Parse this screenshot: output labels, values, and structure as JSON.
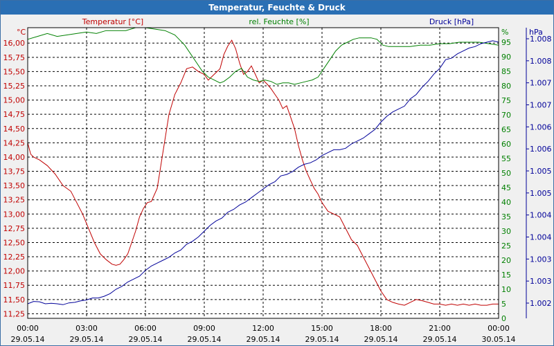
{
  "window": {
    "title": "Temperatur, Feuchte & Druck"
  },
  "colors": {
    "temperature": "#c00000",
    "humidity": "#008000",
    "pressure": "#000099",
    "grid": "#000000",
    "titlebar": "#2a6fb4"
  },
  "chart_data": {
    "type": "line",
    "title": "Temperatur, Feuchte & Druck",
    "grid": true,
    "x_ticks": [
      {
        "time": "00:00",
        "date": "29.05.14"
      },
      {
        "time": "03:00",
        "date": "29.05.14"
      },
      {
        "time": "06:00",
        "date": "29.05.14"
      },
      {
        "time": "09:00",
        "date": "29.05.14"
      },
      {
        "time": "12:00",
        "date": "29.05.14"
      },
      {
        "time": "15:00",
        "date": "29.05.14"
      },
      {
        "time": "18:00",
        "date": "29.05.14"
      },
      {
        "time": "21:00",
        "date": "29.05.14"
      },
      {
        "time": "00:00",
        "date": "30.05.14"
      }
    ],
    "axes": {
      "temperature": {
        "label": "Temperatur [°C]",
        "unit": "°C",
        "ylim": [
          11.17,
          16.27
        ],
        "ticks": [
          "11,25",
          "11,50",
          "11,75",
          "12,00",
          "12,25",
          "12,50",
          "12,75",
          "13,00",
          "13,25",
          "13,50",
          "13,75",
          "14,00",
          "14,25",
          "14,50",
          "14,75",
          "15,00",
          "15,25",
          "15,50",
          "15,75",
          "16,00"
        ]
      },
      "humidity": {
        "label": "rel. Feuchte [%]",
        "unit": "%",
        "ylim": [
          0,
          100
        ],
        "ticks": [
          "0",
          "5",
          "10",
          "15",
          "20",
          "25",
          "30",
          "35",
          "40",
          "45",
          "50",
          "55",
          "60",
          "65",
          "70",
          "75",
          "80",
          "85",
          "90",
          "95"
        ]
      },
      "pressure": {
        "label": "Druck [hPa]",
        "unit": "hPa",
        "ticks": [
          "1.002",
          "1.003",
          "1.003",
          "1.004",
          "1.004",
          "1.005",
          "1.005",
          "1.006",
          "1.006",
          "1.007",
          "1.007",
          "1.008",
          "1.008"
        ]
      }
    },
    "series": [
      {
        "name": "Temperatur [°C]",
        "x": [
          0.0,
          0.15,
          0.3,
          0.6,
          1.0,
          1.4,
          1.8,
          2.2,
          2.5,
          2.8,
          3.1,
          3.4,
          3.7,
          4.0,
          4.3,
          4.5,
          4.7,
          4.9,
          5.1,
          5.3,
          5.5,
          5.7,
          5.9,
          6.1,
          6.3,
          6.6,
          6.9,
          7.2,
          7.5,
          7.8,
          8.1,
          8.4,
          8.7,
          9.0,
          9.2,
          9.5,
          9.8,
          10.0,
          10.2,
          10.4,
          10.6,
          10.8,
          11.0,
          11.2,
          11.4,
          11.6,
          11.8,
          12.0,
          12.2,
          12.4,
          12.6,
          12.8,
          13.0,
          13.2,
          13.4,
          13.6,
          13.8,
          14.0,
          14.2,
          14.4,
          14.6,
          14.8,
          15.0,
          15.3,
          15.6,
          15.9,
          16.2,
          16.5,
          16.8,
          17.1,
          17.4,
          17.7,
          18.0,
          18.3,
          18.6,
          18.9,
          19.2,
          19.5,
          19.8,
          20.1,
          20.4,
          20.7,
          21.0,
          21.3,
          21.6,
          21.9,
          22.2,
          22.5,
          22.8,
          23.1,
          23.4,
          23.7,
          24.0
        ],
        "values": [
          14.25,
          14.05,
          14.0,
          13.95,
          13.85,
          13.7,
          13.5,
          13.4,
          13.2,
          13.0,
          12.75,
          12.5,
          12.3,
          12.2,
          12.12,
          12.1,
          12.12,
          12.2,
          12.3,
          12.5,
          12.7,
          12.95,
          13.1,
          13.2,
          13.22,
          13.45,
          14.1,
          14.75,
          15.1,
          15.3,
          15.55,
          15.58,
          15.5,
          15.45,
          15.35,
          15.45,
          15.55,
          15.8,
          15.95,
          16.05,
          15.9,
          15.65,
          15.45,
          15.5,
          15.6,
          15.45,
          15.3,
          15.35,
          15.28,
          15.2,
          15.1,
          15.0,
          14.85,
          14.9,
          14.7,
          14.5,
          14.2,
          13.95,
          13.75,
          13.6,
          13.45,
          13.35,
          13.2,
          13.05,
          13.0,
          12.95,
          12.75,
          12.55,
          12.45,
          12.25,
          12.05,
          11.85,
          11.65,
          11.5,
          11.45,
          11.42,
          11.4,
          11.45,
          11.5,
          11.48,
          11.45,
          11.42,
          11.42,
          11.4,
          11.42,
          11.4,
          11.42,
          11.4,
          11.42,
          11.4,
          11.4,
          11.42,
          11.42
        ]
      },
      {
        "name": "rel. Feuchte [%]",
        "x": [
          0.0,
          0.5,
          1.0,
          1.5,
          2.0,
          2.5,
          3.0,
          3.5,
          4.0,
          4.5,
          5.0,
          5.5,
          6.0,
          6.5,
          7.0,
          7.5,
          8.0,
          8.3,
          8.6,
          8.9,
          9.2,
          9.5,
          9.8,
          10.0,
          10.3,
          10.6,
          10.9,
          11.2,
          11.5,
          11.8,
          12.1,
          12.4,
          12.7,
          13.0,
          13.3,
          13.6,
          13.9,
          14.2,
          14.5,
          14.8,
          15.1,
          15.4,
          15.7,
          16.0,
          16.3,
          16.6,
          16.9,
          17.2,
          17.5,
          17.8,
          18.1,
          18.4,
          18.7,
          19.0,
          19.5,
          20.0,
          20.5,
          21.0,
          21.5,
          22.0,
          22.5,
          23.0,
          23.5,
          24.0
        ],
        "values": [
          96,
          97,
          98,
          97,
          97.5,
          98,
          98.5,
          98,
          99,
          99,
          99,
          100,
          100,
          99.5,
          99,
          97.5,
          94,
          91,
          88,
          85,
          83,
          82,
          81,
          81.5,
          83,
          85,
          86,
          83,
          82,
          81.5,
          82,
          81.5,
          80.5,
          81,
          81,
          80.5,
          81,
          81.5,
          82,
          83,
          86,
          89,
          92,
          94,
          95,
          96,
          96.5,
          96.5,
          96.5,
          96,
          94,
          93.5,
          93.5,
          93.5,
          93.5,
          94,
          94,
          94.5,
          94.5,
          95,
          95,
          95,
          94.5,
          94
        ]
      },
      {
        "name": "Druck [hPa]",
        "x": [
          0.0,
          0.3,
          0.6,
          0.9,
          1.2,
          1.5,
          1.8,
          2.1,
          2.4,
          2.7,
          3.0,
          3.3,
          3.6,
          3.9,
          4.2,
          4.5,
          4.8,
          5.1,
          5.4,
          5.7,
          6.0,
          6.3,
          6.6,
          6.9,
          7.2,
          7.5,
          7.8,
          8.1,
          8.4,
          8.7,
          9.0,
          9.3,
          9.6,
          9.9,
          10.2,
          10.5,
          10.8,
          11.1,
          11.4,
          11.7,
          12.0,
          12.3,
          12.6,
          12.9,
          13.2,
          13.5,
          13.8,
          14.1,
          14.4,
          14.7,
          15.0,
          15.3,
          15.6,
          15.9,
          16.2,
          16.5,
          16.8,
          17.1,
          17.4,
          17.7,
          18.0,
          18.3,
          18.6,
          18.9,
          19.2,
          19.5,
          19.8,
          20.1,
          20.4,
          20.7,
          21.0,
          21.3,
          21.6,
          21.9,
          22.2,
          22.5,
          22.8,
          23.1,
          23.4,
          23.7,
          24.0
        ],
        "values": [
          5.0,
          5.8,
          5.7,
          5.0,
          5.2,
          5.0,
          4.7,
          5.3,
          5.5,
          6.0,
          6.3,
          7.0,
          7.0,
          7.6,
          8.5,
          10.0,
          11.0,
          12.5,
          13.5,
          14.5,
          16.5,
          18.0,
          19.0,
          20.0,
          21.0,
          22.5,
          23.5,
          25.5,
          26.5,
          28.0,
          30.0,
          32.0,
          33.5,
          34.5,
          36.5,
          37.5,
          39.0,
          40.0,
          41.5,
          43.0,
          44.5,
          46.0,
          47.0,
          49.0,
          49.5,
          50.5,
          52.0,
          53.0,
          53.5,
          54.5,
          56.0,
          57.0,
          58.0,
          58.0,
          58.5,
          60.0,
          61.0,
          62.0,
          63.5,
          65.0,
          67.5,
          69.5,
          71.0,
          72.0,
          73.0,
          75.5,
          77.0,
          79.5,
          81.5,
          84.0,
          86.0,
          89.0,
          89.5,
          91.0,
          92.0,
          93.0,
          93.5,
          94.5,
          95.0,
          95.5,
          95.0
        ]
      }
    ]
  }
}
